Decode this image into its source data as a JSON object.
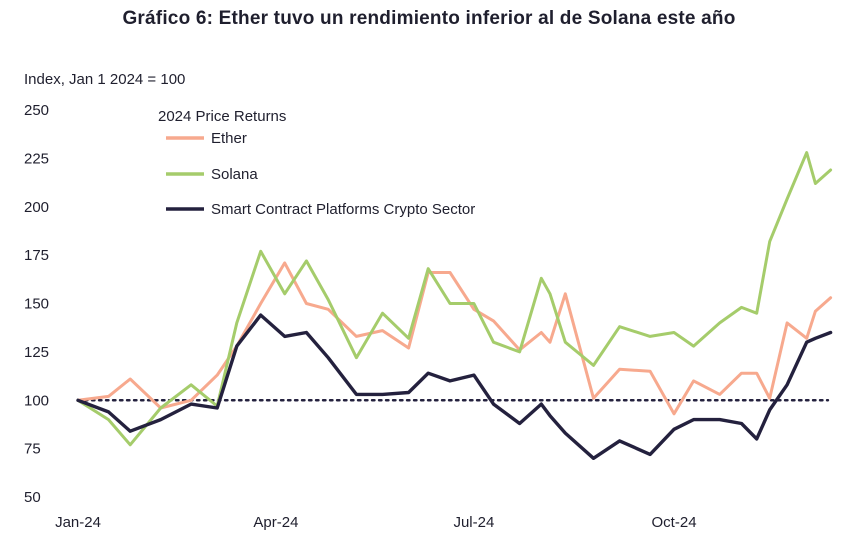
{
  "chart_data": {
    "type": "line",
    "title": "Gráfico 6: Ether tuvo un rendimiento inferior al de Solana este año",
    "ylabel": "Index, Jan 1 2024 = 100",
    "xlabel": "",
    "ylim": [
      50,
      250
    ],
    "yticks": [
      "250",
      "225",
      "200",
      "175",
      "150",
      "125",
      "100",
      "75",
      "50"
    ],
    "xticks": [
      "Jan-24",
      "Apr-24",
      "Jul-24",
      "Oct-24"
    ],
    "reference_line": 100,
    "grid": false,
    "legend_title": "2024 Price Returns",
    "legend_position": "top-left",
    "x": [
      "2024-01-01",
      "2024-01-15",
      "2024-01-25",
      "2024-02-08",
      "2024-02-22",
      "2024-03-05",
      "2024-03-14",
      "2024-03-25",
      "2024-04-05",
      "2024-04-15",
      "2024-04-25",
      "2024-05-08",
      "2024-05-20",
      "2024-06-01",
      "2024-06-10",
      "2024-06-20",
      "2024-07-01",
      "2024-07-10",
      "2024-07-22",
      "2024-08-01",
      "2024-08-05",
      "2024-08-12",
      "2024-08-25",
      "2024-09-06",
      "2024-09-20",
      "2024-10-01",
      "2024-10-10",
      "2024-10-22",
      "2024-11-01",
      "2024-11-08",
      "2024-11-14",
      "2024-11-22",
      "2024-12-01",
      "2024-12-05",
      "2024-12-12"
    ],
    "series": [
      {
        "name": "Ether",
        "color": "#f7a98e",
        "values": [
          100,
          102,
          111,
          96,
          100,
          113,
          128,
          150,
          171,
          150,
          147,
          133,
          136,
          127,
          166,
          166,
          147,
          141,
          126,
          135,
          130,
          155,
          101,
          116,
          115,
          93,
          110,
          103,
          114,
          114,
          101,
          140,
          132,
          146,
          153
        ]
      },
      {
        "name": "Solana",
        "color": "#a5cc6b",
        "values": [
          100,
          90,
          77,
          96,
          108,
          97,
          140,
          177,
          155,
          172,
          152,
          122,
          145,
          132,
          168,
          150,
          150,
          130,
          125,
          163,
          155,
          130,
          118,
          138,
          133,
          135,
          128,
          140,
          148,
          145,
          182,
          204,
          228,
          212,
          219
        ]
      },
      {
        "name": "Smart Contract Platforms Crypto Sector",
        "color": "#24213e",
        "values": [
          100,
          94,
          84,
          90,
          98,
          96,
          128,
          144,
          133,
          135,
          122,
          103,
          103,
          104,
          114,
          110,
          113,
          98,
          88,
          98,
          92,
          83,
          70,
          79,
          72,
          85,
          90,
          90,
          88,
          80,
          95,
          108,
          130,
          132,
          135
        ]
      }
    ]
  }
}
